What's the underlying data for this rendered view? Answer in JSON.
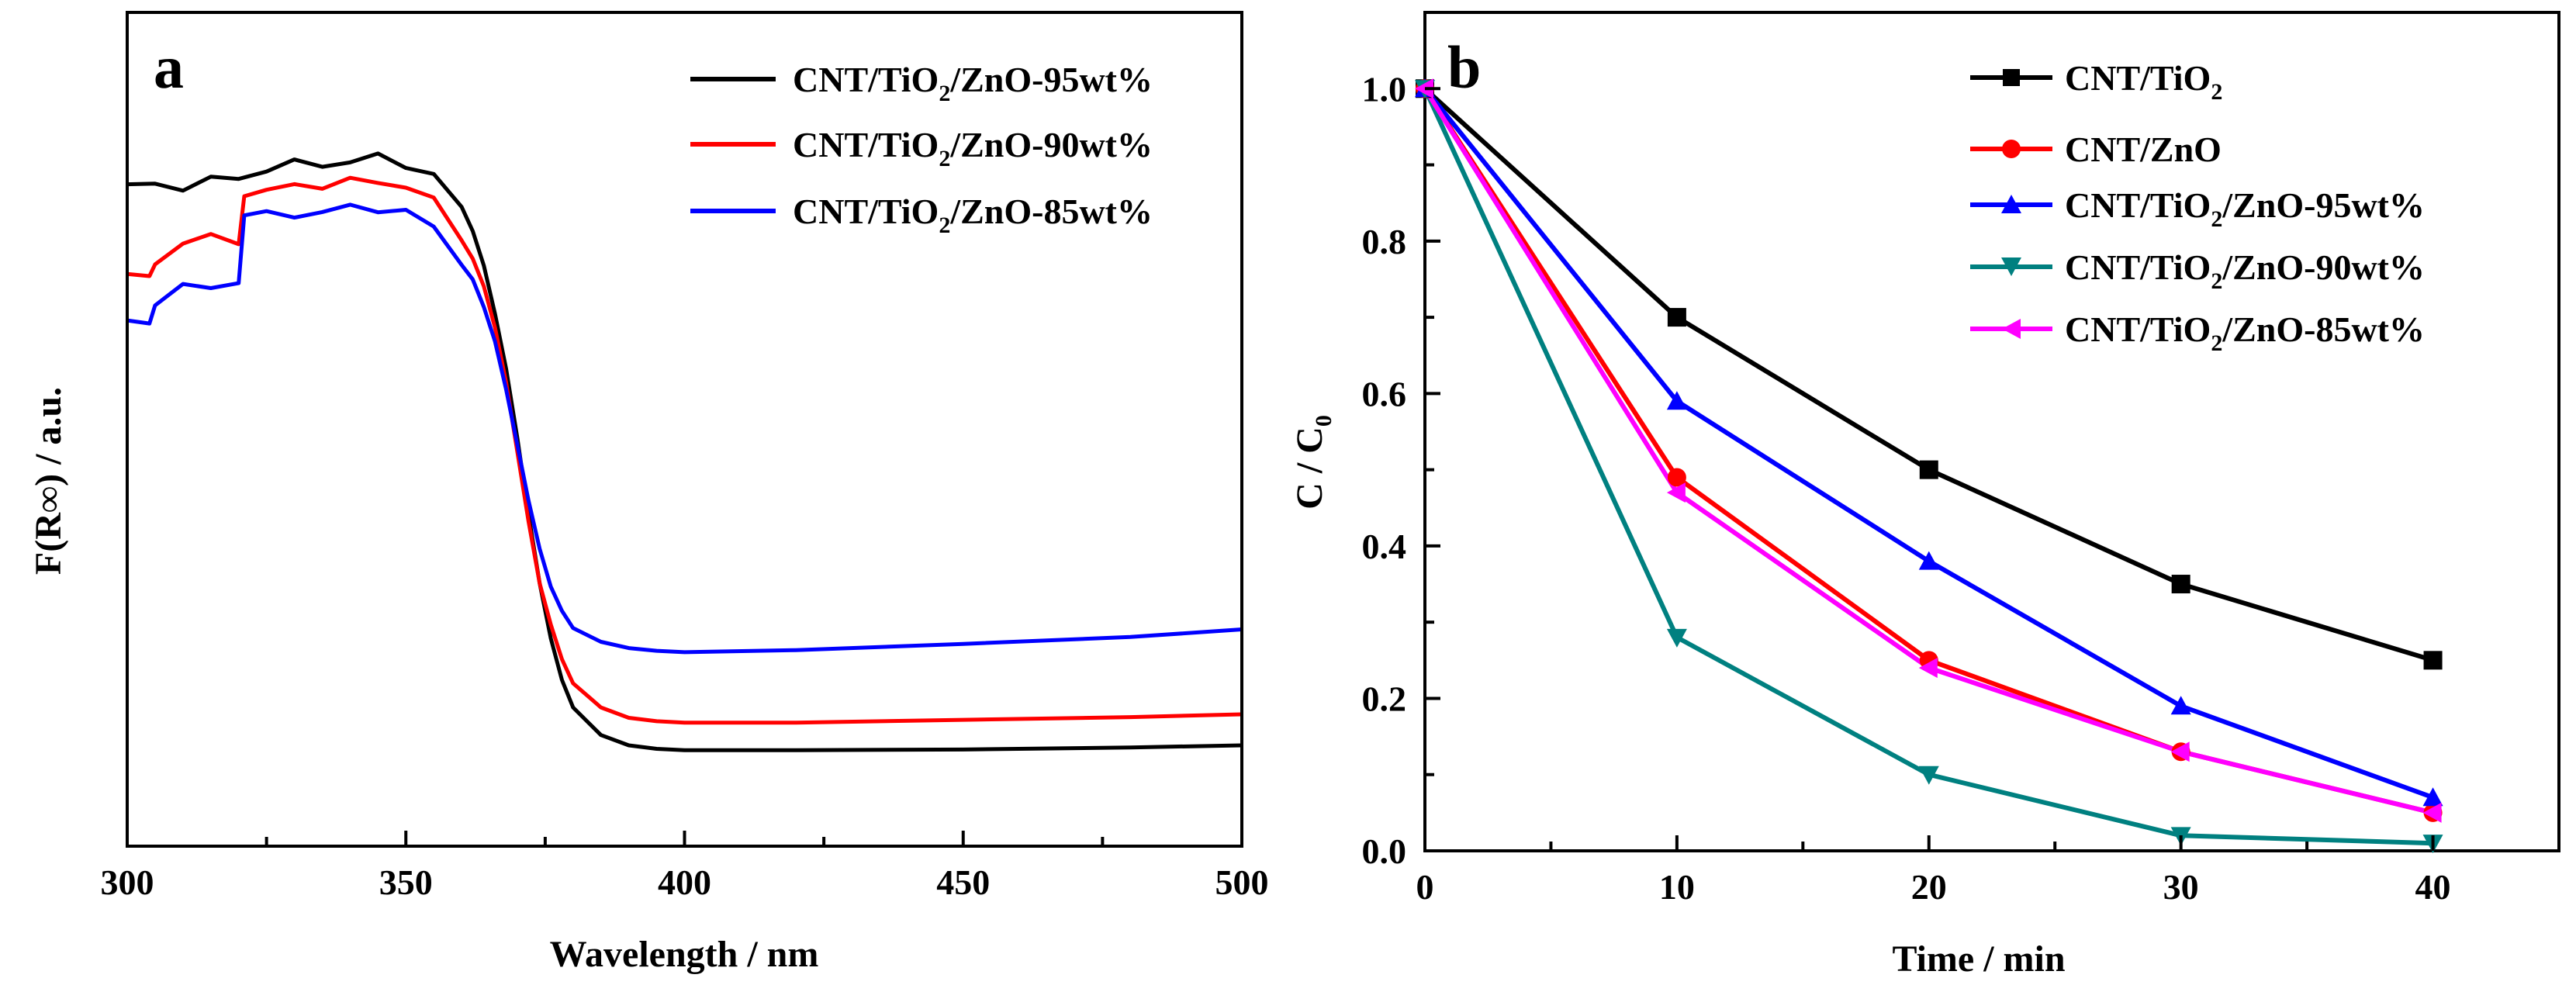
{
  "chart_data": [
    {
      "type": "line",
      "panel_label": "a",
      "xlabel": "Wavelength / nm",
      "ylabel": "F(R∞) / a.u.",
      "xlim": [
        300,
        500
      ],
      "ylim": [
        0,
        100
      ],
      "y_tick_labels": "none",
      "x_ticks": [
        300,
        350,
        400,
        450,
        500
      ],
      "legend_position": "top-right",
      "series": [
        {
          "name": "CNT/TiO₂/ZnO-95wt%",
          "color": "#000000",
          "x": [
            300,
            305,
            310,
            315,
            320,
            325,
            330,
            335,
            340,
            345,
            350,
            355,
            360,
            362,
            364,
            366,
            368,
            370,
            372,
            374,
            376,
            378,
            380,
            385,
            390,
            395,
            400,
            420,
            450,
            480,
            500
          ],
          "y": [
            86,
            87,
            86.5,
            87,
            88,
            89,
            89.5,
            90,
            90,
            90.5,
            90,
            88,
            83,
            80,
            75,
            68,
            60,
            50,
            39,
            29,
            21,
            15,
            11,
            7,
            5.5,
            5,
            4.8,
            4.8,
            4.9,
            5.2,
            5.5
          ]
        },
        {
          "name": "CNT/TiO₂/ZnO-90wt%",
          "color": "#ff0000",
          "x": [
            300,
            304,
            305,
            310,
            315,
            320,
            321,
            325,
            330,
            335,
            340,
            345,
            350,
            355,
            360,
            362,
            364,
            366,
            368,
            370,
            372,
            374,
            376,
            378,
            380,
            385,
            390,
            395,
            400,
            420,
            450,
            480,
            500
          ],
          "y": [
            73,
            73,
            76,
            78,
            79,
            79,
            85,
            85.5,
            86.5,
            87,
            87,
            87,
            87,
            84,
            79,
            76,
            72,
            66,
            58,
            48,
            38,
            29,
            23,
            18,
            14.5,
            11,
            9.5,
            9,
            8.8,
            8.8,
            9.2,
            9.6,
            10
          ]
        },
        {
          "name": "CNT/TiO₂/ZnO-85wt%",
          "color": "#0000ff",
          "x": [
            300,
            304,
            305,
            310,
            315,
            320,
            321,
            325,
            330,
            335,
            340,
            345,
            350,
            355,
            360,
            362,
            364,
            366,
            368,
            370,
            372,
            374,
            376,
            378,
            380,
            385,
            390,
            395,
            400,
            420,
            450,
            480,
            500
          ],
          "y": [
            67,
            67,
            70,
            71.5,
            72,
            73,
            81.5,
            82,
            82.5,
            83,
            83,
            83.5,
            83,
            80,
            76,
            73,
            69,
            64,
            57,
            49,
            41,
            34,
            28.5,
            25,
            22.5,
            20.5,
            19.6,
            19.2,
            19,
            19.3,
            20.2,
            21.2,
            22.3
          ]
        }
      ]
    },
    {
      "type": "line",
      "panel_label": "b",
      "xlabel": "Time / min",
      "ylabel": "C / C",
      "ylabel_subscript": "0",
      "xlim": [
        0,
        45
      ],
      "ylim": [
        0,
        1.1
      ],
      "x_ticks": [
        0,
        10,
        20,
        30,
        40
      ],
      "x_tick_labels": [
        "0",
        "10",
        "20",
        "30",
        "40"
      ],
      "y_ticks": [
        0.0,
        0.2,
        0.4,
        0.6,
        0.8,
        1.0
      ],
      "y_tick_labels": [
        "0.0",
        "0.2",
        "0.4",
        "0.6",
        "0.8",
        "1.0"
      ],
      "legend_position": "top-right",
      "series": [
        {
          "name": "CNT/TiO₂",
          "color": "#000000",
          "marker": "square",
          "x": [
            0,
            10,
            20,
            30,
            40
          ],
          "values": [
            1.0,
            0.7,
            0.5,
            0.35,
            0.25
          ]
        },
        {
          "name": "CNT/ZnO",
          "color": "#ff0000",
          "marker": "circle",
          "x": [
            0,
            10,
            20,
            30,
            40
          ],
          "values": [
            1.0,
            0.49,
            0.25,
            0.13,
            0.05
          ]
        },
        {
          "name": "CNT/TiO₂/ZnO-95wt%",
          "color": "#0000ff",
          "marker": "triangle-up",
          "x": [
            0,
            10,
            20,
            30,
            40
          ],
          "values": [
            1.0,
            0.59,
            0.38,
            0.19,
            0.07
          ]
        },
        {
          "name": "CNT/TiO₂/ZnO-90wt%",
          "color": "#008080",
          "marker": "triangle-down",
          "x": [
            0,
            10,
            20,
            30,
            40
          ],
          "values": [
            1.0,
            0.28,
            0.1,
            0.02,
            0.01
          ]
        },
        {
          "name": "CNT/TiO₂/ZnO-85wt%",
          "color": "#ff00ff",
          "marker": "triangle-left",
          "x": [
            0,
            10,
            20,
            30,
            40
          ],
          "values": [
            1.0,
            0.47,
            0.24,
            0.13,
            0.05
          ]
        }
      ]
    }
  ]
}
